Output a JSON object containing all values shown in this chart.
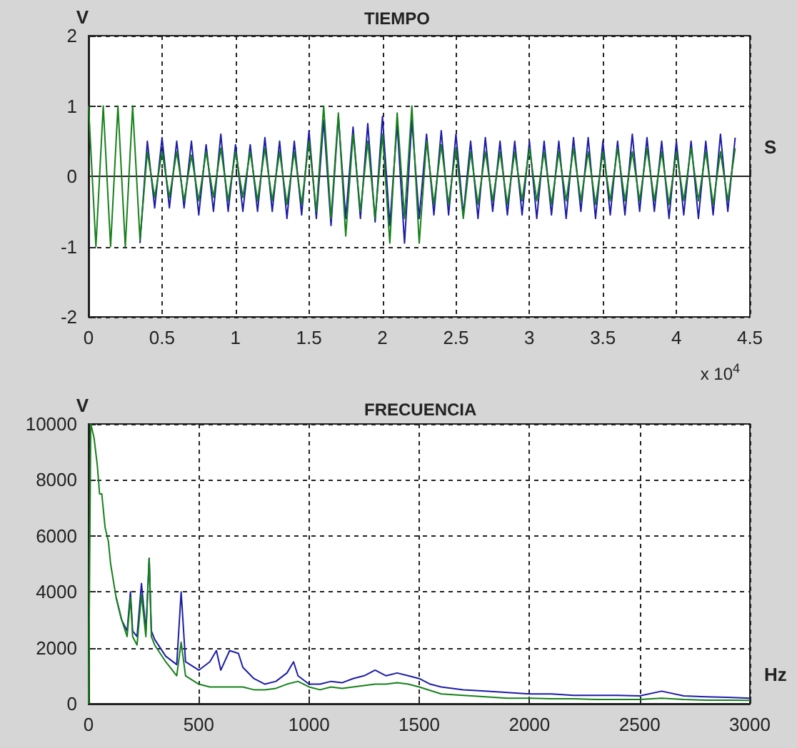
{
  "chart_data": [
    {
      "type": "line",
      "title": "TIEMPO",
      "xlabel": "S",
      "ylabel": "V",
      "annotations": [
        "x 10$^{4}$"
      ],
      "xlim": [
        0,
        4.5
      ],
      "xticks": [
        0,
        0.5,
        1,
        1.5,
        2,
        2.5,
        3,
        3.5,
        4,
        4.5
      ],
      "ylim": [
        -2,
        2
      ],
      "yticks": [
        -2,
        -1,
        0,
        1,
        2
      ],
      "grid": true,
      "marker": "none",
      "line_style": "solid",
      "x": [
        0,
        0.05,
        0.1,
        0.15,
        0.2,
        0.25,
        0.3,
        0.35,
        0.4,
        0.45,
        0.5,
        0.55,
        0.6,
        0.65,
        0.7,
        0.75,
        0.8,
        0.85,
        0.9,
        0.95,
        1,
        1.05,
        1.1,
        1.15,
        1.2,
        1.25,
        1.3,
        1.35,
        1.4,
        1.45,
        1.5,
        1.55,
        1.6,
        1.65,
        1.7,
        1.75,
        1.8,
        1.85,
        1.9,
        1.95,
        2,
        2.05,
        2.1,
        2.15,
        2.2,
        2.25,
        2.3,
        2.35,
        2.4,
        2.45,
        2.5,
        2.55,
        2.6,
        2.65,
        2.7,
        2.75,
        2.8,
        2.85,
        2.9,
        2.95,
        3,
        3.05,
        3.1,
        3.15,
        3.2,
        3.25,
        3.3,
        3.35,
        3.4,
        3.45,
        3.5,
        3.55,
        3.6,
        3.65,
        3.7,
        3.75,
        3.8,
        3.85,
        3.9,
        3.95,
        4,
        4.05,
        4.1,
        4.15,
        4.2,
        4.25,
        4.3,
        4.35,
        4.4
      ],
      "series": [
        {
          "color": "#1c1ca8",
          "values": [
            null,
            null,
            null,
            null,
            null,
            null,
            null,
            -0.95,
            0.5,
            -0.45,
            0.55,
            -0.45,
            0.5,
            -0.45,
            0.5,
            -0.55,
            0.45,
            -0.5,
            0.6,
            -0.5,
            0.45,
            -0.5,
            0.45,
            -0.5,
            0.55,
            -0.5,
            0.5,
            -0.6,
            0.5,
            -0.55,
            0.65,
            -0.6,
            0.8,
            -0.7,
            0.85,
            -0.6,
            0.7,
            -0.6,
            0.75,
            -0.65,
            0.85,
            -0.7,
            0.75,
            -0.95,
            0.8,
            -0.6,
            0.6,
            -0.55,
            0.65,
            -0.55,
            0.6,
            -0.55,
            0.5,
            -0.6,
            0.55,
            -0.5,
            0.5,
            -0.55,
            0.5,
            -0.55,
            0.5,
            -0.6,
            0.5,
            -0.55,
            0.5,
            -0.6,
            0.55,
            -0.5,
            0.55,
            -0.6,
            0.5,
            -0.55,
            0.5,
            -0.55,
            0.6,
            -0.5,
            0.55,
            -0.5,
            0.5,
            -0.6,
            0.5,
            -0.55,
            0.5,
            -0.6,
            0.5,
            -0.55,
            0.6,
            -0.5,
            0.55
          ]
        },
        {
          "color": "#16801a",
          "values": [
            1,
            -1,
            1,
            -1,
            1,
            -1,
            1,
            -0.9,
            0.35,
            -0.3,
            0.35,
            -0.3,
            0.35,
            -0.35,
            0.3,
            -0.35,
            0.35,
            -0.3,
            0.4,
            -0.35,
            0.35,
            -0.3,
            0.35,
            -0.35,
            0.4,
            -0.35,
            0.35,
            -0.4,
            0.35,
            -0.4,
            0.5,
            -0.5,
            1,
            -0.6,
            0.9,
            -0.85,
            0.6,
            -0.5,
            0.5,
            -0.6,
            0.6,
            -0.95,
            0.9,
            -0.6,
            1,
            -0.95,
            0.5,
            -0.4,
            0.45,
            -0.4,
            0.4,
            -0.6,
            0.35,
            -0.4,
            0.35,
            -0.35,
            0.35,
            -0.4,
            0.35,
            -0.35,
            0.4,
            -0.35,
            0.35,
            -0.4,
            0.35,
            -0.35,
            0.4,
            -0.35,
            0.35,
            -0.4,
            0.35,
            -0.35,
            0.4,
            -0.35,
            0.35,
            -0.35,
            0.4,
            -0.35,
            0.35,
            -0.4,
            0.35,
            -0.35,
            0.4,
            -0.35,
            0.35,
            -0.4,
            0.35,
            -0.35,
            0.4
          ]
        }
      ]
    },
    {
      "type": "line",
      "title": "FRECUENCIA",
      "xlabel": "Hz",
      "ylabel": "V",
      "xlim": [
        0,
        3000
      ],
      "xticks": [
        0,
        500,
        1000,
        1500,
        2000,
        2500,
        3000
      ],
      "ylim": [
        0,
        10000
      ],
      "yticks": [
        0,
        2000,
        4000,
        6000,
        8000,
        10000
      ],
      "grid": true,
      "marker": "none",
      "line_style": "solid",
      "series": [
        {
          "color": "#1c1ca8",
          "x": [
            125,
            150,
            175,
            190,
            200,
            220,
            240,
            260,
            275,
            285,
            300,
            350,
            400,
            420,
            440,
            500,
            550,
            580,
            600,
            640,
            680,
            700,
            750,
            800,
            850,
            900,
            930,
            950,
            1000,
            1050,
            1100,
            1150,
            1200,
            1250,
            1300,
            1350,
            1400,
            1450,
            1500,
            1550,
            1600,
            1700,
            1800,
            1900,
            2000,
            2100,
            2200,
            2300,
            2400,
            2500,
            2600,
            2700,
            2800,
            2900,
            3000
          ],
          "values": [
            3800,
            3000,
            2600,
            4000,
            2600,
            2400,
            4300,
            2600,
            5200,
            2600,
            2300,
            1700,
            1400,
            4000,
            1500,
            1200,
            1500,
            1900,
            1200,
            1900,
            1800,
            1300,
            900,
            700,
            800,
            1100,
            1500,
            1000,
            700,
            700,
            800,
            750,
            900,
            1000,
            1200,
            1000,
            1100,
            1000,
            900,
            700,
            600,
            500,
            450,
            400,
            350,
            350,
            300,
            300,
            300,
            280,
            450,
            280,
            250,
            230,
            200
          ]
        },
        {
          "color": "#16801a",
          "x": [
            0,
            10,
            25,
            40,
            50,
            60,
            75,
            90,
            100,
            125,
            150,
            175,
            190,
            200,
            220,
            240,
            260,
            275,
            285,
            300,
            350,
            400,
            420,
            440,
            500,
            550,
            600,
            650,
            700,
            750,
            800,
            850,
            900,
            950,
            1000,
            1050,
            1100,
            1150,
            1200,
            1250,
            1300,
            1350,
            1400,
            1450,
            1500,
            1600,
            1700,
            1800,
            1900,
            2000,
            2100,
            2200,
            2300,
            2400,
            2500,
            2600,
            2700,
            2800,
            2900,
            3000
          ],
          "values": [
            0,
            10000,
            9500,
            8500,
            7500,
            7500,
            6300,
            5800,
            5000,
            3800,
            3000,
            2400,
            3800,
            2400,
            2100,
            3900,
            2400,
            5200,
            2400,
            2100,
            1500,
            1000,
            2200,
            1000,
            700,
            600,
            600,
            600,
            600,
            500,
            500,
            550,
            700,
            800,
            600,
            500,
            600,
            550,
            600,
            650,
            700,
            700,
            750,
            700,
            600,
            350,
            300,
            250,
            200,
            200,
            180,
            180,
            150,
            150,
            150,
            200,
            150,
            130,
            130,
            120
          ]
        }
      ]
    }
  ]
}
